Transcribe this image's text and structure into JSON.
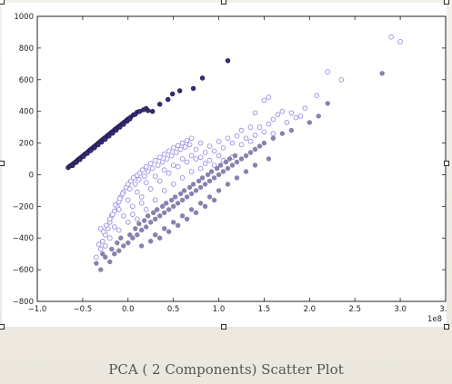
{
  "caption": "PCA ( 2 Components) Scatter Plot",
  "colors": {
    "dark_series": "#3b2a78",
    "dark_series_edge": "#1f1548",
    "light_fill": "#ffffff",
    "light_edge": "#8e7fe0",
    "mid_fill": "#8a80b0",
    "axis": "#222222"
  },
  "chart_data": {
    "type": "scatter",
    "title": "",
    "xlabel": "",
    "ylabel": "",
    "x_offset_label": "1e8",
    "xlim": [
      -1.0,
      3.5
    ],
    "ylim": [
      -800,
      1000
    ],
    "xticks": [
      -1.0,
      -0.5,
      0.0,
      0.5,
      1.0,
      1.5,
      2.0,
      2.5,
      3.0,
      3.5
    ],
    "xtick_labels": [
      "−1.0",
      "−0.5",
      "0.0",
      "0.5",
      "1.0",
      "1.5",
      "2.0",
      "2.5",
      "3.0",
      "3.5"
    ],
    "yticks": [
      -800,
      -600,
      -400,
      -200,
      0,
      200,
      400,
      600,
      800,
      1000
    ],
    "ytick_labels": [
      "−800",
      "−600",
      "−400",
      "−200",
      "0",
      "200",
      "400",
      "600",
      "800",
      "1000"
    ],
    "grid": false,
    "legend": "none",
    "series": [
      {
        "style": "dark-filled",
        "points": [
          [
            -0.66,
            45
          ],
          [
            -0.64,
            55
          ],
          [
            -0.62,
            62
          ],
          [
            -0.6,
            72
          ],
          [
            -0.58,
            80
          ],
          [
            -0.56,
            90
          ],
          [
            -0.54,
            100
          ],
          [
            -0.52,
            108
          ],
          [
            -0.5,
            118
          ],
          [
            -0.48,
            128
          ],
          [
            -0.46,
            136
          ],
          [
            -0.44,
            146
          ],
          [
            -0.42,
            156
          ],
          [
            -0.4,
            165
          ],
          [
            -0.38,
            175
          ],
          [
            -0.36,
            184
          ],
          [
            -0.34,
            194
          ],
          [
            -0.32,
            204
          ],
          [
            -0.3,
            213
          ],
          [
            -0.28,
            222
          ],
          [
            -0.26,
            232
          ],
          [
            -0.24,
            240
          ],
          [
            -0.22,
            250
          ],
          [
            -0.2,
            260
          ],
          [
            -0.18,
            268
          ],
          [
            -0.16,
            278
          ],
          [
            -0.14,
            288
          ],
          [
            -0.12,
            296
          ],
          [
            -0.1,
            306
          ],
          [
            -0.08,
            314
          ],
          [
            -0.06,
            324
          ],
          [
            -0.04,
            333
          ],
          [
            -0.02,
            342
          ],
          [
            0.0,
            352
          ],
          [
            0.03,
            364
          ],
          [
            0.06,
            378
          ],
          [
            0.1,
            395
          ],
          [
            -0.61,
            58
          ],
          [
            -0.57,
            78
          ],
          [
            -0.53,
            96
          ],
          [
            -0.49,
            115
          ],
          [
            -0.45,
            134
          ],
          [
            -0.41,
            152
          ],
          [
            -0.37,
            170
          ],
          [
            -0.33,
            188
          ],
          [
            -0.29,
            206
          ],
          [
            -0.25,
            224
          ],
          [
            -0.21,
            244
          ],
          [
            -0.17,
            262
          ],
          [
            -0.13,
            282
          ],
          [
            -0.09,
            300
          ],
          [
            -0.05,
            318
          ],
          [
            -0.01,
            338
          ],
          [
            0.02,
            352
          ],
          [
            0.08,
            382
          ],
          [
            0.13,
            400
          ],
          [
            0.17,
            410
          ],
          [
            0.2,
            418
          ],
          [
            0.27,
            400
          ],
          [
            0.22,
            405
          ],
          [
            0.35,
            445
          ],
          [
            0.44,
            475
          ],
          [
            0.49,
            510
          ],
          [
            0.57,
            530
          ],
          [
            0.72,
            545
          ],
          [
            0.82,
            610
          ],
          [
            1.1,
            720
          ]
        ]
      },
      {
        "style": "light-hollow",
        "points": [
          [
            -0.35,
            -520
          ],
          [
            -0.3,
            -470
          ],
          [
            -0.28,
            -420
          ],
          [
            -0.25,
            -380
          ],
          [
            -0.22,
            -340
          ],
          [
            -0.2,
            -300
          ],
          [
            -0.18,
            -260
          ],
          [
            -0.15,
            -230
          ],
          [
            -0.12,
            -200
          ],
          [
            -0.1,
            -170
          ],
          [
            -0.08,
            -140
          ],
          [
            -0.05,
            -110
          ],
          [
            -0.02,
            -80
          ],
          [
            0.0,
            -60
          ],
          [
            0.03,
            -40
          ],
          [
            0.06,
            -20
          ],
          [
            0.1,
            -5
          ],
          [
            0.13,
            10
          ],
          [
            0.16,
            30
          ],
          [
            0.2,
            50
          ],
          [
            0.25,
            70
          ],
          [
            0.3,
            90
          ],
          [
            0.35,
            110
          ],
          [
            0.4,
            130
          ],
          [
            0.45,
            150
          ],
          [
            0.5,
            170
          ],
          [
            0.55,
            185
          ],
          [
            0.6,
            200
          ],
          [
            0.65,
            215
          ],
          [
            0.7,
            230
          ],
          [
            0.8,
            200
          ],
          [
            0.9,
            180
          ],
          [
            1.0,
            210
          ],
          [
            1.1,
            230
          ],
          [
            1.2,
            245
          ],
          [
            1.3,
            230
          ],
          [
            1.4,
            250
          ],
          [
            1.5,
            270
          ],
          [
            1.45,
            300
          ],
          [
            1.55,
            320
          ],
          [
            1.6,
            350
          ],
          [
            1.65,
            380
          ],
          [
            1.7,
            400
          ],
          [
            1.8,
            390
          ],
          [
            1.9,
            370
          ],
          [
            1.95,
            420
          ],
          [
            1.4,
            390
          ],
          [
            1.5,
            470
          ],
          [
            1.55,
            490
          ],
          [
            2.08,
            500
          ],
          [
            2.2,
            650
          ],
          [
            2.35,
            600
          ],
          [
            2.9,
            870
          ],
          [
            3.0,
            840
          ],
          [
            -0.32,
            -440
          ],
          [
            -0.27,
            -360
          ],
          [
            -0.24,
            -320
          ],
          [
            -0.17,
            -250
          ],
          [
            -0.14,
            -190
          ],
          [
            -0.09,
            -150
          ],
          [
            -0.06,
            -120
          ],
          [
            0.02,
            -90
          ],
          [
            0.08,
            -60
          ],
          [
            0.12,
            -30
          ],
          [
            0.18,
            -10
          ],
          [
            0.22,
            20
          ],
          [
            0.27,
            40
          ],
          [
            0.33,
            60
          ],
          [
            0.38,
            80
          ],
          [
            0.43,
            100
          ],
          [
            0.48,
            120
          ],
          [
            0.53,
            140
          ],
          [
            0.58,
            160
          ],
          [
            0.63,
            175
          ],
          [
            0.68,
            190
          ],
          [
            0.75,
            160
          ],
          [
            0.85,
            140
          ],
          [
            0.95,
            150
          ],
          [
            1.05,
            170
          ],
          [
            1.15,
            200
          ],
          [
            1.25,
            190
          ],
          [
            1.35,
            210
          ],
          [
            1.25,
            280
          ],
          [
            1.35,
            300
          ],
          [
            1.6,
            260
          ],
          [
            1.75,
            330
          ],
          [
            1.85,
            360
          ],
          [
            1.0,
            120
          ],
          [
            0.9,
            90
          ],
          [
            0.8,
            110
          ],
          [
            0.7,
            120
          ],
          [
            0.6,
            100
          ],
          [
            0.5,
            60
          ],
          [
            0.4,
            30
          ],
          [
            0.3,
            -10
          ],
          [
            0.2,
            -50
          ],
          [
            0.1,
            -110
          ],
          [
            0.0,
            -160
          ],
          [
            -0.1,
            -220
          ],
          [
            -0.2,
            -280
          ],
          [
            -0.3,
            -340
          ],
          [
            -0.15,
            -330
          ],
          [
            -0.05,
            -260
          ],
          [
            0.05,
            -200
          ],
          [
            0.15,
            -140
          ],
          [
            0.25,
            -90
          ],
          [
            0.35,
            -40
          ],
          [
            0.45,
            10
          ],
          [
            0.55,
            50
          ],
          [
            0.65,
            80
          ],
          [
            0.75,
            100
          ],
          [
            0.85,
            70
          ],
          [
            0.95,
            60
          ],
          [
            1.05,
            90
          ],
          [
            1.15,
            110
          ],
          [
            0.1,
            -280
          ],
          [
            0.2,
            -220
          ],
          [
            0.3,
            -160
          ],
          [
            0.4,
            -100
          ],
          [
            0.5,
            -60
          ],
          [
            0.6,
            -20
          ],
          [
            0.7,
            20
          ],
          [
            0.8,
            40
          ],
          [
            -0.25,
            -450
          ],
          [
            -0.2,
            -400
          ],
          [
            -0.1,
            -350
          ],
          [
            0.0,
            -300
          ],
          [
            0.05,
            -250
          ],
          [
            0.15,
            -180
          ]
        ]
      },
      {
        "style": "mid-filled",
        "points": [
          [
            -0.3,
            -600
          ],
          [
            -0.2,
            -550
          ],
          [
            -0.15,
            -500
          ],
          [
            -0.1,
            -480
          ],
          [
            -0.05,
            -450
          ],
          [
            0.0,
            -430
          ],
          [
            0.05,
            -400
          ],
          [
            0.1,
            -380
          ],
          [
            0.15,
            -350
          ],
          [
            0.2,
            -330
          ],
          [
            0.25,
            -300
          ],
          [
            0.3,
            -280
          ],
          [
            0.35,
            -260
          ],
          [
            0.4,
            -240
          ],
          [
            0.45,
            -220
          ],
          [
            0.5,
            -200
          ],
          [
            0.55,
            -180
          ],
          [
            0.6,
            -160
          ],
          [
            0.65,
            -140
          ],
          [
            0.7,
            -120
          ],
          [
            0.75,
            -100
          ],
          [
            0.8,
            -80
          ],
          [
            0.85,
            -60
          ],
          [
            0.9,
            -40
          ],
          [
            0.95,
            -20
          ],
          [
            1.0,
            0
          ],
          [
            1.05,
            20
          ],
          [
            1.1,
            40
          ],
          [
            1.15,
            60
          ],
          [
            1.2,
            80
          ],
          [
            1.25,
            100
          ],
          [
            1.3,
            120
          ],
          [
            1.35,
            140
          ],
          [
            1.4,
            160
          ],
          [
            1.45,
            180
          ],
          [
            1.5,
            200
          ],
          [
            1.6,
            230
          ],
          [
            1.7,
            260
          ],
          [
            1.8,
            280
          ],
          [
            2.0,
            330
          ],
          [
            2.1,
            370
          ],
          [
            2.2,
            450
          ],
          [
            2.8,
            640
          ],
          [
            -0.25,
            -520
          ],
          [
            -0.18,
            -470
          ],
          [
            -0.12,
            -430
          ],
          [
            -0.08,
            -400
          ],
          [
            0.02,
            -380
          ],
          [
            0.08,
            -340
          ],
          [
            0.12,
            -310
          ],
          [
            0.18,
            -290
          ],
          [
            0.22,
            -260
          ],
          [
            0.28,
            -240
          ],
          [
            0.32,
            -220
          ],
          [
            0.38,
            -200
          ],
          [
            0.42,
            -180
          ],
          [
            0.48,
            -160
          ],
          [
            0.52,
            -140
          ],
          [
            0.58,
            -120
          ],
          [
            0.62,
            -100
          ],
          [
            0.68,
            -80
          ],
          [
            0.72,
            -60
          ],
          [
            0.78,
            -40
          ],
          [
            0.82,
            -20
          ],
          [
            0.88,
            0
          ],
          [
            0.92,
            20
          ],
          [
            0.98,
            40
          ],
          [
            1.02,
            60
          ],
          [
            1.08,
            80
          ],
          [
            1.12,
            100
          ],
          [
            1.18,
            120
          ],
          [
            0.3,
            -380
          ],
          [
            0.4,
            -340
          ],
          [
            0.5,
            -300
          ],
          [
            0.6,
            -260
          ],
          [
            0.7,
            -220
          ],
          [
            0.8,
            -180
          ],
          [
            0.9,
            -140
          ],
          [
            1.0,
            -100
          ],
          [
            1.1,
            -60
          ],
          [
            1.2,
            -20
          ],
          [
            1.3,
            20
          ],
          [
            1.4,
            60
          ],
          [
            1.55,
            100
          ],
          [
            -0.35,
            -560
          ],
          [
            -0.28,
            -500
          ],
          [
            0.15,
            -450
          ],
          [
            0.25,
            -420
          ],
          [
            0.35,
            -400
          ],
          [
            0.45,
            -360
          ],
          [
            0.55,
            -320
          ],
          [
            0.65,
            -280
          ],
          [
            0.75,
            -240
          ],
          [
            0.85,
            -200
          ],
          [
            0.95,
            -160
          ]
        ]
      }
    ]
  }
}
